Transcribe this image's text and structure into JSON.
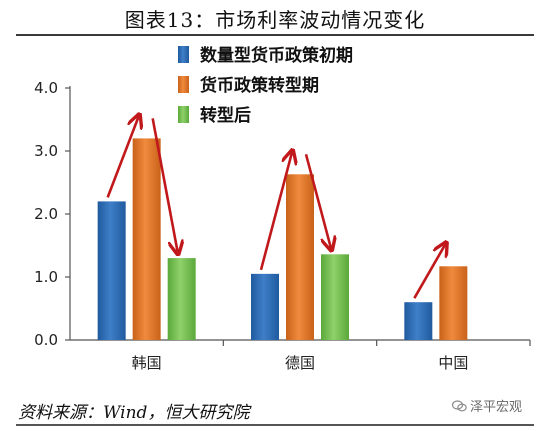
{
  "title": "图表13：市场利率波动情况变化",
  "source": "资料来源：Wind，恒大研究院",
  "watermark": {
    "text": "泽平宏观",
    "icon": "wechat-icon"
  },
  "colors": {
    "series": [
      "#3f7fc8",
      "#f08a3c",
      "#8fd16a"
    ],
    "series_dark": [
      "#1f5a9e",
      "#c9621a",
      "#5aa83a"
    ],
    "arrow": "#c0181b"
  },
  "chart_data": {
    "type": "bar",
    "categories": [
      "韩国",
      "德国",
      "中国"
    ],
    "series": [
      {
        "name": "数量型货币政策初期",
        "values": [
          2.2,
          1.05,
          0.6
        ]
      },
      {
        "name": "货币政策转型期",
        "values": [
          3.2,
          2.63,
          1.17
        ]
      },
      {
        "name": "转型后",
        "values": [
          1.3,
          1.36,
          null
        ]
      }
    ],
    "ylim": [
      0,
      4
    ],
    "yticks": [
      "0.0",
      "1.0",
      "2.0",
      "3.0",
      "4.0"
    ],
    "grid": false,
    "legend_position": "top-right",
    "annotations": "red arrows between consecutive bars showing rise then fall"
  }
}
